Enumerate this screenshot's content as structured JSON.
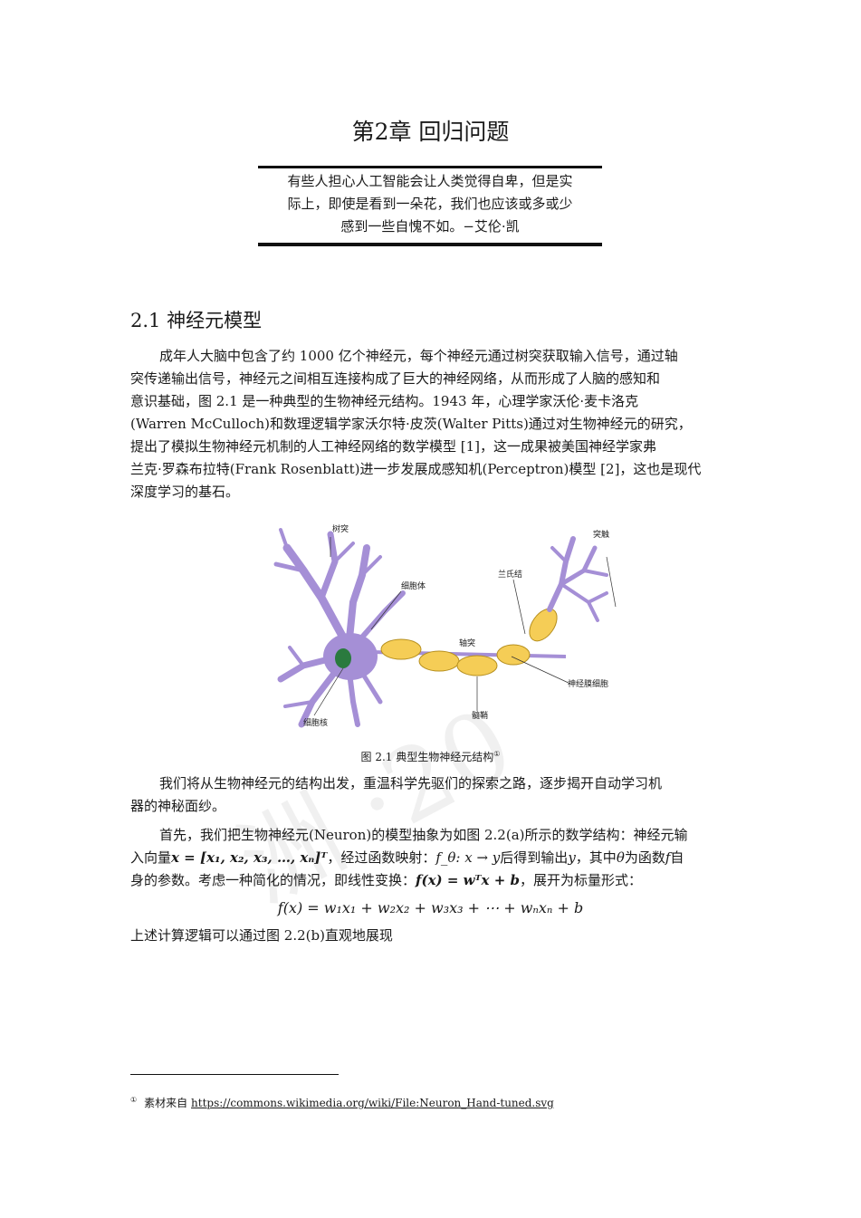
{
  "chapter": {
    "title": "第2章 回归问题"
  },
  "epigraph": {
    "lines": [
      "有些人担心人工智能会让人类觉得自卑，但是实",
      "际上，即使是看到一朵花，我们也应该或多或少",
      "感到一些自愧不如。−艾伦·凯"
    ]
  },
  "section": {
    "title": "2.1 神经元模型"
  },
  "para1": {
    "lines": [
      "成年人大脑中包含了约 1000 亿个神经元，每个神经元通过树突获取输入信号，通过轴",
      "突传递输出信号，神经元之间相互连接构成了巨大的神经网络，从而形成了人脑的感知和",
      "意识基础，图 2.1 是一种典型的生物神经元结构。1943 年，心理学家沃伦·麦卡洛克",
      "(Warren McCulloch)和数理逻辑学家沃尔特·皮茨(Walter Pitts)通过对生物神经元的研究，",
      "提出了模拟生物神经元机制的人工神经网络的数学模型 [1]，这一成果被美国神经学家弗",
      "兰克·罗森布拉特(Frank Rosenblatt)进一步发展成感知机(Perceptron)模型 [2]，这也是现代",
      "深度学习的基石。"
    ]
  },
  "figure": {
    "labels": {
      "dendrite": "树突",
      "cell_body": "细胞体",
      "axon": "轴突",
      "node_of_ranvier": "兰氏结",
      "synapse": "突触",
      "schwann_cell": "神经膜细胞",
      "myelin": "髓鞘",
      "nucleus": "细胞核"
    },
    "caption": "图 2.1 典型生物神经元结构",
    "caption_mark": "①",
    "colors": {
      "neuron": "#a58fd6",
      "myelin": "#f5cd56",
      "nucleus": "#2a7a3e"
    }
  },
  "para2": {
    "lines": [
      "我们将从生物神经元的结构出发，重温科学先驱们的探索之路，逐步揭开自动学习机",
      "器的神秘面纱。"
    ]
  },
  "para3": {
    "line1": "首先，我们把生物神经元(Neuron)的模型抽象为如图 2.2(a)所示的数学结构：神经元输",
    "line2_a": "入向量",
    "line2_math1": "x = [x₁, x₂, x₃, …, xₙ]ᵀ",
    "line2_b": "，经过函数映射：",
    "line2_math2": "f_θ: x → y",
    "line2_c": "后得到输出",
    "line2_math3": "y",
    "line2_d": "，其中",
    "line2_math4": "θ",
    "line2_e": "为函数",
    "line2_math5": "f",
    "line2_f": "自",
    "line3_a": "身的参数。考虑一种简化的情况，即线性变换：",
    "line3_math": "f(x) = wᵀx + b",
    "line3_b": "，展开为标量形式："
  },
  "formula": "f(x) = w₁x₁ + w₂x₂ + w₃x₃ + ⋯ + wₙxₙ + b",
  "para4": "上述计算逻辑可以通过图 2.2(b)直观地展现",
  "footnote": {
    "mark": "①",
    "prefix": "素材来自",
    "link": "https://commons.wikimedia.org/wiki/File:Neuron_Hand-tuned.svg"
  }
}
